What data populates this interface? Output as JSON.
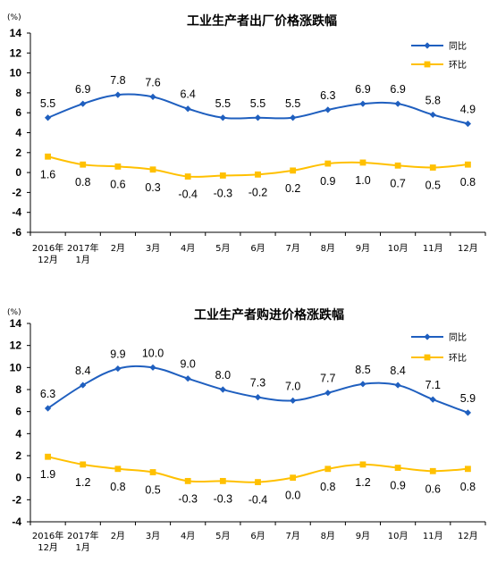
{
  "chart_data": [
    {
      "type": "line",
      "title": "工业生产者出厂价格涨跌幅",
      "unit_label": "(%)",
      "categories": [
        "2016年|12月",
        "2017年|1月",
        "2月",
        "3月",
        "4月",
        "5月",
        "6月",
        "7月",
        "8月",
        "9月",
        "10月",
        "11月",
        "12月"
      ],
      "ylim": [
        -6,
        14
      ],
      "yticks": [
        -6,
        -4,
        -2,
        0,
        2,
        4,
        6,
        8,
        10,
        12,
        14
      ],
      "grid": false,
      "legend_position": "top-right",
      "series": [
        {
          "name": "同比",
          "color": "#1f5fbf",
          "marker": "diamond",
          "values": [
            5.5,
            6.9,
            7.8,
            7.6,
            6.4,
            5.5,
            5.5,
            5.5,
            6.3,
            6.9,
            6.9,
            5.8,
            4.9
          ],
          "label_position": "above",
          "labels": [
            "5.5",
            "6.9",
            "7.8",
            "7.6",
            "6.4",
            "5.5",
            "5.5",
            "5.5",
            "6.3",
            "6.9",
            "6.9",
            "5.8",
            "4.9"
          ]
        },
        {
          "name": "环比",
          "color": "#ffc000",
          "marker": "square",
          "values": [
            1.6,
            0.8,
            0.6,
            0.3,
            -0.4,
            -0.3,
            -0.2,
            0.2,
            0.9,
            1.0,
            0.7,
            0.5,
            0.8
          ],
          "label_position": "below",
          "labels": [
            "1.6",
            "0.8",
            "0.6",
            "0.3",
            "-0.4",
            "-0.3",
            "-0.2",
            "0.2",
            "0.9",
            "1.0",
            "0.7",
            "0.5",
            "0.8"
          ]
        }
      ]
    },
    {
      "type": "line",
      "title": "工业生产者购进价格涨跌幅",
      "unit_label": "(%)",
      "categories": [
        "2016年|12月",
        "2017年|1月",
        "2月",
        "3月",
        "4月",
        "5月",
        "6月",
        "7月",
        "8月",
        "9月",
        "10月",
        "11月",
        "12月"
      ],
      "ylim": [
        -4,
        14
      ],
      "yticks": [
        -4,
        -2,
        0,
        2,
        4,
        6,
        8,
        10,
        12,
        14
      ],
      "grid": false,
      "legend_position": "top-right",
      "series": [
        {
          "name": "同比",
          "color": "#1f5fbf",
          "marker": "diamond",
          "values": [
            6.3,
            8.4,
            9.9,
            10.0,
            9.0,
            8.0,
            7.3,
            7.0,
            7.7,
            8.5,
            8.4,
            7.1,
            5.9
          ],
          "label_position": "above",
          "labels": [
            "6.3",
            "8.4",
            "9.9",
            "10.0",
            "9.0",
            "8.0",
            "7.3",
            "7.0",
            "7.7",
            "8.5",
            "8.4",
            "7.1",
            "5.9"
          ]
        },
        {
          "name": "环比",
          "color": "#ffc000",
          "marker": "square",
          "values": [
            1.9,
            1.2,
            0.8,
            0.5,
            -0.3,
            -0.3,
            -0.4,
            0.0,
            0.8,
            1.2,
            0.9,
            0.6,
            0.8
          ],
          "label_position": "below",
          "labels": [
            "1.9",
            "1.2",
            "0.8",
            "0.5",
            "-0.3",
            "-0.3",
            "-0.4",
            "0.0",
            "0.8",
            "1.2",
            "0.9",
            "0.6",
            "0.8"
          ]
        }
      ]
    }
  ]
}
